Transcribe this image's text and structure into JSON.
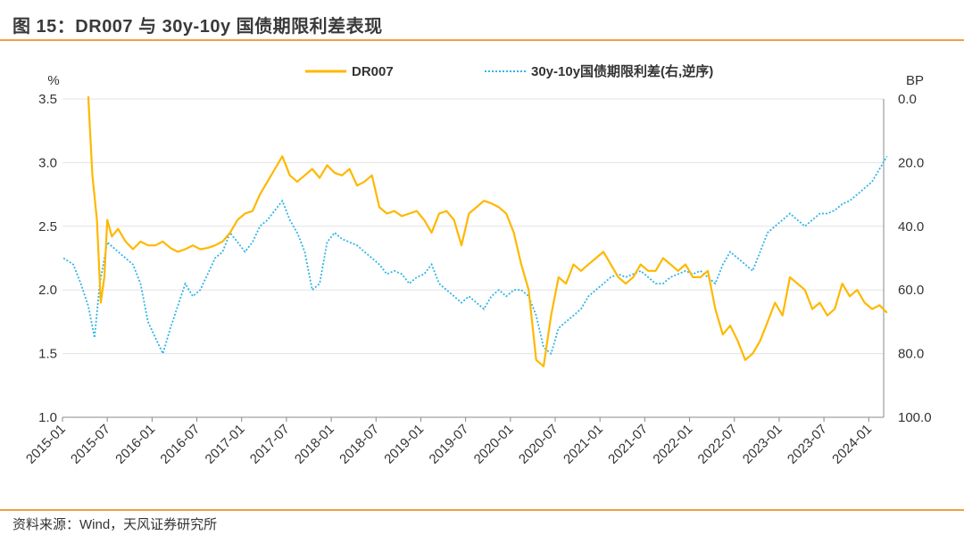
{
  "header": {
    "title": "图 15：DR007 与 30y-10y 国债期限利差表现"
  },
  "footer": {
    "source": "资料来源：Wind，天风证券研究所"
  },
  "chart_data": {
    "type": "line",
    "title": "DR007 与 30y-10y 国债期限利差表现",
    "y_left_unit": "%",
    "y_right_unit": "BP",
    "y_left_range": [
      1.0,
      3.5
    ],
    "y_left_ticks": [
      "1.0",
      "1.5",
      "2.0",
      "2.5",
      "3.0",
      "3.5"
    ],
    "y_right_range": [
      100.0,
      0.0
    ],
    "y_right_reversed": true,
    "y_right_ticks": [
      "0.0",
      "20.0",
      "40.0",
      "60.0",
      "80.0",
      "100.0"
    ],
    "x_ticks": [
      "2015-01",
      "2015-07",
      "2016-01",
      "2016-07",
      "2017-01",
      "2017-07",
      "2018-01",
      "2018-07",
      "2019-01",
      "2019-07",
      "2020-01",
      "2020-07",
      "2021-01",
      "2021-07",
      "2022-01",
      "2022-07",
      "2023-01",
      "2023-07",
      "2024-01"
    ],
    "x_range": [
      "2015-01",
      "2024-03"
    ],
    "grid": "horizontal",
    "legend_position": "top",
    "colors": {
      "dr007": "#ffb800",
      "spread": "#2fb5e6"
    },
    "series": [
      {
        "name": "DR007",
        "axis": "left",
        "points": [
          [
            "2015-04-15",
            3.52
          ],
          [
            "2015-05-01",
            2.9
          ],
          [
            "2015-05-20",
            2.55
          ],
          [
            "2015-06-05",
            1.9
          ],
          [
            "2015-06-20",
            2.1
          ],
          [
            "2015-07-01",
            2.55
          ],
          [
            "2015-07-20",
            2.42
          ],
          [
            "2015-08-15",
            2.48
          ],
          [
            "2015-09-15",
            2.38
          ],
          [
            "2015-10-15",
            2.32
          ],
          [
            "2015-11-15",
            2.38
          ],
          [
            "2015-12-15",
            2.35
          ],
          [
            "2016-01-15",
            2.35
          ],
          [
            "2016-02-15",
            2.38
          ],
          [
            "2016-03-15",
            2.33
          ],
          [
            "2016-04-15",
            2.3
          ],
          [
            "2016-05-15",
            2.32
          ],
          [
            "2016-06-15",
            2.35
          ],
          [
            "2016-07-15",
            2.32
          ],
          [
            "2016-08-15",
            2.33
          ],
          [
            "2016-09-15",
            2.35
          ],
          [
            "2016-10-15",
            2.38
          ],
          [
            "2016-11-15",
            2.45
          ],
          [
            "2016-12-15",
            2.55
          ],
          [
            "2017-01-15",
            2.6
          ],
          [
            "2017-02-15",
            2.62
          ],
          [
            "2017-03-15",
            2.75
          ],
          [
            "2017-04-15",
            2.85
          ],
          [
            "2017-05-15",
            2.95
          ],
          [
            "2017-06-15",
            3.05
          ],
          [
            "2017-07-15",
            2.9
          ],
          [
            "2017-08-15",
            2.85
          ],
          [
            "2017-09-15",
            2.9
          ],
          [
            "2017-10-15",
            2.95
          ],
          [
            "2017-11-15",
            2.88
          ],
          [
            "2017-12-15",
            2.98
          ],
          [
            "2018-01-15",
            2.92
          ],
          [
            "2018-02-15",
            2.9
          ],
          [
            "2018-03-15",
            2.95
          ],
          [
            "2018-04-15",
            2.82
          ],
          [
            "2018-05-15",
            2.85
          ],
          [
            "2018-06-15",
            2.9
          ],
          [
            "2018-07-15",
            2.65
          ],
          [
            "2018-08-15",
            2.6
          ],
          [
            "2018-09-15",
            2.62
          ],
          [
            "2018-10-15",
            2.58
          ],
          [
            "2018-11-15",
            2.6
          ],
          [
            "2018-12-15",
            2.62
          ],
          [
            "2019-01-15",
            2.55
          ],
          [
            "2019-02-15",
            2.45
          ],
          [
            "2019-03-15",
            2.6
          ],
          [
            "2019-04-15",
            2.62
          ],
          [
            "2019-05-15",
            2.55
          ],
          [
            "2019-06-15",
            2.35
          ],
          [
            "2019-07-15",
            2.6
          ],
          [
            "2019-08-15",
            2.65
          ],
          [
            "2019-09-15",
            2.7
          ],
          [
            "2019-10-15",
            2.68
          ],
          [
            "2019-11-15",
            2.65
          ],
          [
            "2019-12-15",
            2.6
          ],
          [
            "2020-01-15",
            2.45
          ],
          [
            "2020-02-15",
            2.2
          ],
          [
            "2020-03-15",
            2.0
          ],
          [
            "2020-04-15",
            1.45
          ],
          [
            "2020-05-15",
            1.4
          ],
          [
            "2020-06-15",
            1.8
          ],
          [
            "2020-07-15",
            2.1
          ],
          [
            "2020-08-15",
            2.05
          ],
          [
            "2020-09-15",
            2.2
          ],
          [
            "2020-10-15",
            2.15
          ],
          [
            "2020-11-15",
            2.2
          ],
          [
            "2020-12-15",
            2.25
          ],
          [
            "2021-01-15",
            2.3
          ],
          [
            "2021-02-15",
            2.2
          ],
          [
            "2021-03-15",
            2.1
          ],
          [
            "2021-04-15",
            2.05
          ],
          [
            "2021-05-15",
            2.1
          ],
          [
            "2021-06-15",
            2.2
          ],
          [
            "2021-07-15",
            2.15
          ],
          [
            "2021-08-15",
            2.15
          ],
          [
            "2021-09-15",
            2.25
          ],
          [
            "2021-10-15",
            2.2
          ],
          [
            "2021-11-15",
            2.15
          ],
          [
            "2021-12-15",
            2.2
          ],
          [
            "2022-01-15",
            2.1
          ],
          [
            "2022-02-15",
            2.1
          ],
          [
            "2022-03-15",
            2.15
          ],
          [
            "2022-04-15",
            1.85
          ],
          [
            "2022-05-15",
            1.65
          ],
          [
            "2022-06-15",
            1.72
          ],
          [
            "2022-07-15",
            1.6
          ],
          [
            "2022-08-15",
            1.45
          ],
          [
            "2022-09-15",
            1.5
          ],
          [
            "2022-10-15",
            1.6
          ],
          [
            "2022-11-15",
            1.75
          ],
          [
            "2022-12-15",
            1.9
          ],
          [
            "2023-01-15",
            1.8
          ],
          [
            "2023-02-15",
            2.1
          ],
          [
            "2023-03-15",
            2.05
          ],
          [
            "2023-04-15",
            2.0
          ],
          [
            "2023-05-15",
            1.85
          ],
          [
            "2023-06-15",
            1.9
          ],
          [
            "2023-07-15",
            1.8
          ],
          [
            "2023-08-15",
            1.85
          ],
          [
            "2023-09-15",
            2.05
          ],
          [
            "2023-10-15",
            1.95
          ],
          [
            "2023-11-15",
            2.0
          ],
          [
            "2023-12-15",
            1.9
          ],
          [
            "2024-01-15",
            1.85
          ],
          [
            "2024-02-15",
            1.88
          ],
          [
            "2024-03-15",
            1.82
          ]
        ]
      },
      {
        "name": "30y-10y国债期限利差(右,逆序)",
        "axis": "right",
        "points": [
          [
            "2015-01-05",
            50
          ],
          [
            "2015-02-15",
            52
          ],
          [
            "2015-03-15",
            58
          ],
          [
            "2015-04-15",
            65
          ],
          [
            "2015-05-10",
            75
          ],
          [
            "2015-06-01",
            58
          ],
          [
            "2015-07-01",
            45
          ],
          [
            "2015-08-15",
            48
          ],
          [
            "2015-09-15",
            50
          ],
          [
            "2015-10-15",
            52
          ],
          [
            "2015-11-15",
            58
          ],
          [
            "2015-12-15",
            70
          ],
          [
            "2016-01-15",
            75
          ],
          [
            "2016-02-15",
            80
          ],
          [
            "2016-03-15",
            72
          ],
          [
            "2016-04-15",
            65
          ],
          [
            "2016-05-15",
            58
          ],
          [
            "2016-06-15",
            62
          ],
          [
            "2016-07-15",
            60
          ],
          [
            "2016-08-15",
            55
          ],
          [
            "2016-09-15",
            50
          ],
          [
            "2016-10-15",
            48
          ],
          [
            "2016-11-15",
            42
          ],
          [
            "2016-12-15",
            45
          ],
          [
            "2017-01-15",
            48
          ],
          [
            "2017-02-15",
            45
          ],
          [
            "2017-03-15",
            40
          ],
          [
            "2017-04-15",
            38
          ],
          [
            "2017-05-15",
            35
          ],
          [
            "2017-06-15",
            32
          ],
          [
            "2017-07-15",
            38
          ],
          [
            "2017-08-15",
            42
          ],
          [
            "2017-09-15",
            48
          ],
          [
            "2017-10-15",
            60
          ],
          [
            "2017-11-15",
            58
          ],
          [
            "2017-12-15",
            45
          ],
          [
            "2018-01-15",
            42
          ],
          [
            "2018-02-15",
            44
          ],
          [
            "2018-03-15",
            45
          ],
          [
            "2018-04-15",
            46
          ],
          [
            "2018-05-15",
            48
          ],
          [
            "2018-06-15",
            50
          ],
          [
            "2018-07-15",
            52
          ],
          [
            "2018-08-15",
            55
          ],
          [
            "2018-09-15",
            54
          ],
          [
            "2018-10-15",
            55
          ],
          [
            "2018-11-15",
            58
          ],
          [
            "2018-12-15",
            56
          ],
          [
            "2019-01-15",
            55
          ],
          [
            "2019-02-15",
            52
          ],
          [
            "2019-03-15",
            58
          ],
          [
            "2019-04-15",
            60
          ],
          [
            "2019-05-15",
            62
          ],
          [
            "2019-06-15",
            64
          ],
          [
            "2019-07-15",
            62
          ],
          [
            "2019-08-15",
            64
          ],
          [
            "2019-09-15",
            66
          ],
          [
            "2019-10-15",
            62
          ],
          [
            "2019-11-15",
            60
          ],
          [
            "2019-12-15",
            62
          ],
          [
            "2020-01-15",
            60
          ],
          [
            "2020-02-15",
            60
          ],
          [
            "2020-03-15",
            62
          ],
          [
            "2020-04-15",
            68
          ],
          [
            "2020-05-15",
            78
          ],
          [
            "2020-06-15",
            80
          ],
          [
            "2020-07-15",
            72
          ],
          [
            "2020-08-15",
            70
          ],
          [
            "2020-09-15",
            68
          ],
          [
            "2020-10-15",
            66
          ],
          [
            "2020-11-15",
            62
          ],
          [
            "2020-12-15",
            60
          ],
          [
            "2021-01-15",
            58
          ],
          [
            "2021-02-15",
            56
          ],
          [
            "2021-03-15",
            55
          ],
          [
            "2021-04-15",
            56
          ],
          [
            "2021-05-15",
            55
          ],
          [
            "2021-06-15",
            54
          ],
          [
            "2021-07-15",
            56
          ],
          [
            "2021-08-15",
            58
          ],
          [
            "2021-09-15",
            58
          ],
          [
            "2021-10-15",
            56
          ],
          [
            "2021-11-15",
            55
          ],
          [
            "2021-12-15",
            54
          ],
          [
            "2022-01-15",
            55
          ],
          [
            "2022-02-15",
            54
          ],
          [
            "2022-03-15",
            56
          ],
          [
            "2022-04-15",
            58
          ],
          [
            "2022-05-15",
            52
          ],
          [
            "2022-06-15",
            48
          ],
          [
            "2022-07-15",
            50
          ],
          [
            "2022-08-15",
            52
          ],
          [
            "2022-09-15",
            54
          ],
          [
            "2022-10-15",
            48
          ],
          [
            "2022-11-15",
            42
          ],
          [
            "2022-12-15",
            40
          ],
          [
            "2023-01-15",
            38
          ],
          [
            "2023-02-15",
            36
          ],
          [
            "2023-03-15",
            38
          ],
          [
            "2023-04-15",
            40
          ],
          [
            "2023-05-15",
            38
          ],
          [
            "2023-06-15",
            36
          ],
          [
            "2023-07-15",
            36
          ],
          [
            "2023-08-15",
            35
          ],
          [
            "2023-09-15",
            33
          ],
          [
            "2023-10-15",
            32
          ],
          [
            "2023-11-15",
            30
          ],
          [
            "2023-12-15",
            28
          ],
          [
            "2024-01-15",
            26
          ],
          [
            "2024-02-15",
            22
          ],
          [
            "2024-03-15",
            18
          ]
        ]
      }
    ]
  }
}
